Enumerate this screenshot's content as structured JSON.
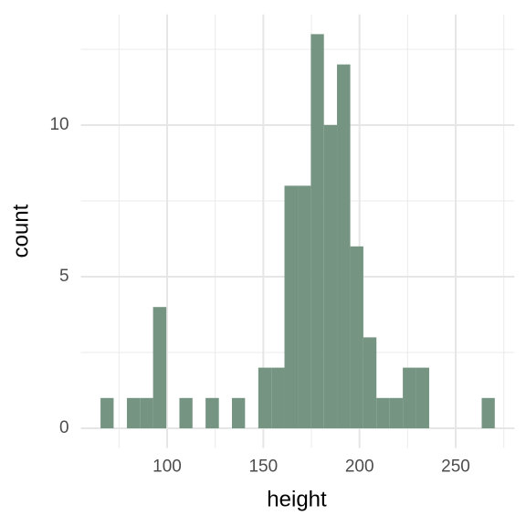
{
  "chart_data": {
    "type": "histogram",
    "x_label": "height",
    "y_label": "count",
    "bins": [
      65.4,
      72.2,
      79.1,
      85.9,
      92.7,
      99.6,
      106.4,
      113.2,
      120.0,
      126.9,
      133.7,
      140.5,
      147.4,
      154.2,
      161.0,
      167.9,
      174.7,
      181.5,
      188.3,
      195.2,
      202.0,
      208.8,
      215.7,
      222.5,
      229.3,
      236.2,
      243.0,
      249.8,
      256.6,
      263.5,
      270.3
    ],
    "values": [
      1,
      0,
      1,
      1,
      4,
      0,
      1,
      0,
      1,
      0,
      1,
      0,
      2,
      2,
      8,
      8,
      13,
      10,
      12,
      6,
      3,
      1,
      1,
      2,
      2,
      0,
      0,
      0,
      0,
      1
    ],
    "color": "#759482",
    "xlim": [
      55.2,
      280.5
    ],
    "ylim": [
      -0.65,
      13.65
    ],
    "xticks": [
      100,
      150,
      200,
      250
    ],
    "yticks": [
      0,
      5,
      10
    ],
    "xminor": [
      75,
      125,
      175,
      225,
      275
    ],
    "yminor": [
      2.5,
      7.5,
      12.5
    ],
    "grid": true
  }
}
